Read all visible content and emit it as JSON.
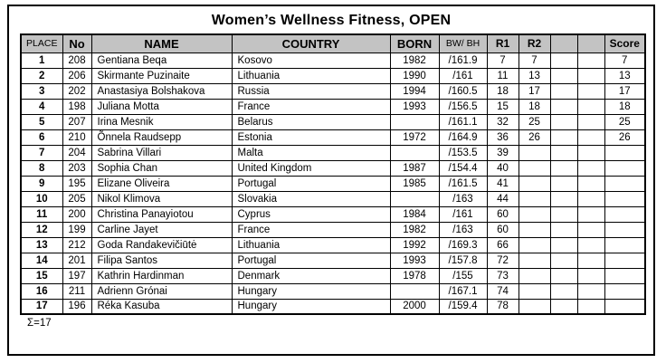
{
  "title": "Women’s Wellness Fitness, OPEN",
  "table": {
    "headers": {
      "place": "PLACE",
      "no": "No",
      "name": "NAME",
      "country": "COUNTRY",
      "born": "BORN",
      "bw_bh": "BW/ BH",
      "r1": "R1",
      "r2": "R2",
      "blank1": "",
      "blank2": "",
      "score": "Score"
    },
    "rows": [
      {
        "place": "1",
        "no": "208",
        "name": "Gentiana Beqa",
        "country": "Kosovo",
        "born": "1982",
        "bw_bh": "/161.9",
        "r1": "7",
        "r2": "7",
        "score": "7"
      },
      {
        "place": "2",
        "no": "206",
        "name": "Skirmante Puzinaite",
        "country": "Lithuania",
        "born": "1990",
        "bw_bh": "/161",
        "r1": "11",
        "r2": "13",
        "score": "13"
      },
      {
        "place": "3",
        "no": "202",
        "name": "Anastasiya Bolshakova",
        "country": "Russia",
        "born": "1994",
        "bw_bh": "/160.5",
        "r1": "18",
        "r2": "17",
        "score": "17"
      },
      {
        "place": "4",
        "no": "198",
        "name": "Juliana Motta",
        "country": "France",
        "born": "1993",
        "bw_bh": "/156.5",
        "r1": "15",
        "r2": "18",
        "score": "18"
      },
      {
        "place": "5",
        "no": "207",
        "name": "Irina Mesnik",
        "country": "Belarus",
        "born": "",
        "bw_bh": "/161.1",
        "r1": "32",
        "r2": "25",
        "score": "25"
      },
      {
        "place": "6",
        "no": "210",
        "name": "Õnnela Raudsepp",
        "country": "Estonia",
        "born": "1972",
        "bw_bh": "/164.9",
        "r1": "36",
        "r2": "26",
        "score": "26"
      },
      {
        "place": "7",
        "no": "204",
        "name": "Sabrina Villari",
        "country": "Malta",
        "born": "",
        "bw_bh": "/153.5",
        "r1": "39",
        "r2": "",
        "score": ""
      },
      {
        "place": "8",
        "no": "203",
        "name": "Sophia Chan",
        "country": "United Kingdom",
        "born": "1987",
        "bw_bh": "/154.4",
        "r1": "40",
        "r2": "",
        "score": ""
      },
      {
        "place": "9",
        "no": "195",
        "name": "Elizane Oliveira",
        "country": "Portugal",
        "born": "1985",
        "bw_bh": "/161.5",
        "r1": "41",
        "r2": "",
        "score": ""
      },
      {
        "place": "10",
        "no": "205",
        "name": "Nikol Klimova",
        "country": "Slovakia",
        "born": "",
        "bw_bh": "/163",
        "r1": "44",
        "r2": "",
        "score": ""
      },
      {
        "place": "11",
        "no": "200",
        "name": "Christina Panayiotou",
        "country": "Cyprus",
        "born": "1984",
        "bw_bh": "/161",
        "r1": "60",
        "r2": "",
        "score": ""
      },
      {
        "place": "12",
        "no": "199",
        "name": "Carline Jayet",
        "country": "France",
        "born": "1982",
        "bw_bh": "/163",
        "r1": "60",
        "r2": "",
        "score": ""
      },
      {
        "place": "13",
        "no": "212",
        "name": "Goda Randakevičiūtė",
        "country": "Lithuania",
        "born": "1992",
        "bw_bh": "/169.3",
        "r1": "66",
        "r2": "",
        "score": ""
      },
      {
        "place": "14",
        "no": "201",
        "name": "Filipa Santos",
        "country": "Portugal",
        "born": "1993",
        "bw_bh": "/157.8",
        "r1": "72",
        "r2": "",
        "score": ""
      },
      {
        "place": "15",
        "no": "197",
        "name": "Kathrin Hardinman",
        "country": "Denmark",
        "born": "1978",
        "bw_bh": "/155",
        "r1": "73",
        "r2": "",
        "score": ""
      },
      {
        "place": "16",
        "no": "211",
        "name": "Adrienn Grónai",
        "country": "Hungary",
        "born": "",
        "bw_bh": "/167.1",
        "r1": "74",
        "r2": "",
        "score": ""
      },
      {
        "place": "17",
        "no": "196",
        "name": "Réka Kasuba",
        "country": "Hungary",
        "born": "2000",
        "bw_bh": "/159.4",
        "r1": "78",
        "r2": "",
        "score": ""
      }
    ]
  },
  "footer": {
    "total": "Σ=17"
  },
  "colors": {
    "header_bg": "#c3c3c3",
    "border": "#000000",
    "page_bg": "#ffffff"
  }
}
